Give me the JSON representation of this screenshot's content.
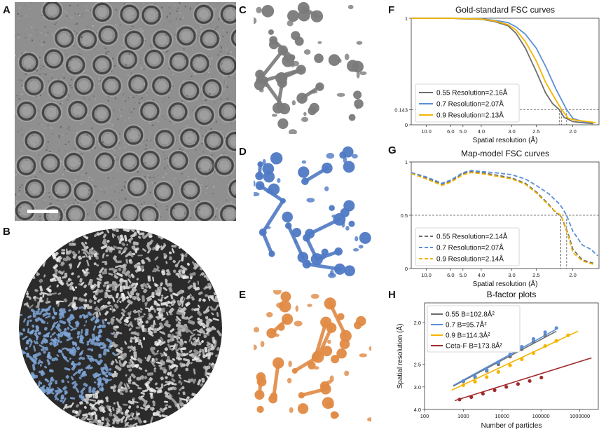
{
  "panel_labels": {
    "A": "A",
    "B": "B",
    "C": "C",
    "D": "D",
    "E": "E",
    "F": "F",
    "G": "G",
    "H": "H"
  },
  "colors": {
    "gray": "#6e6e6e",
    "blue": "#5b8fd6",
    "yellow": "#f5b400",
    "red": "#a02b2b",
    "density_c": "#7a7a7a",
    "density_d": "#4f79c4",
    "density_e": "#e08a45",
    "micrograph_bg": "#8f8f8f",
    "map_blue_patch": "#7fa6d8"
  },
  "chart_data": [
    {
      "id": "F",
      "type": "line",
      "title": "Gold-standard FSC curves",
      "xlabel": "Spatial resolution (Å)",
      "ylabel": "",
      "x_scale": "reciprocal",
      "xlim": [
        17,
        1.75
      ],
      "ylim": [
        0,
        1
      ],
      "xticks": [
        {
          "v": 10.0,
          "label": "10.0"
        },
        {
          "v": 6.0,
          "label": "6.0"
        },
        {
          "v": 5.0,
          "label": "5.0"
        },
        {
          "v": 4.0,
          "label": "4.0"
        },
        {
          "v": 3.0,
          "label": "3.0"
        },
        {
          "v": 2.5,
          "label": "2.5"
        },
        {
          "v": 2.0,
          "label": "2.0"
        }
      ],
      "yticks": [
        {
          "v": 0,
          "label": "0"
        },
        {
          "v": 0.143,
          "label": "0.143"
        },
        {
          "v": 1,
          "label": "1"
        }
      ],
      "threshold": 0.143,
      "legend_position": "lower-left",
      "series": [
        {
          "name": "0.55",
          "legend": "0.55  Resolution=2.16Å",
          "color_key": "gray",
          "dash": false,
          "cutoff": 2.16,
          "x": [
            17,
            8,
            6,
            5,
            4,
            3.5,
            3.1,
            2.9,
            2.7,
            2.5,
            2.35,
            2.25,
            2.16,
            2.1,
            2.0,
            1.9,
            1.8
          ],
          "y": [
            1,
            1,
            1,
            0.995,
            0.99,
            0.97,
            0.93,
            0.86,
            0.72,
            0.5,
            0.3,
            0.2,
            0.143,
            0.07,
            0.03,
            0.02,
            0.01
          ]
        },
        {
          "name": "0.7",
          "legend": "0.7    Resolution=2.07Å",
          "color_key": "blue",
          "dash": false,
          "cutoff": 2.07,
          "x": [
            17,
            8,
            6,
            5,
            4,
            3.5,
            3.1,
            2.9,
            2.7,
            2.5,
            2.35,
            2.2,
            2.07,
            2.0,
            1.9,
            1.8
          ],
          "y": [
            1,
            1,
            1,
            0.998,
            0.995,
            0.98,
            0.96,
            0.92,
            0.85,
            0.72,
            0.55,
            0.33,
            0.143,
            0.06,
            0.03,
            0.02
          ]
        },
        {
          "name": "0.9",
          "legend": "0.9    Resolution=2.13Å",
          "color_key": "yellow",
          "dash": false,
          "cutoff": 2.13,
          "x": [
            17,
            8,
            6,
            5,
            4,
            3.5,
            3.1,
            2.9,
            2.7,
            2.5,
            2.35,
            2.22,
            2.13,
            2.05,
            1.95,
            1.85,
            1.78
          ],
          "y": [
            1,
            1,
            1,
            0.997,
            0.993,
            0.975,
            0.94,
            0.89,
            0.78,
            0.6,
            0.4,
            0.25,
            0.143,
            0.06,
            0.04,
            0.03,
            0.02
          ]
        }
      ]
    },
    {
      "id": "G",
      "type": "line",
      "title": "Map-model FSC curves",
      "xlabel": "Spatial resolution (Å)",
      "ylabel": "",
      "x_scale": "reciprocal",
      "xlim": [
        17,
        1.75
      ],
      "ylim": [
        0,
        1
      ],
      "xticks": [
        {
          "v": 10.0,
          "label": "10.0"
        },
        {
          "v": 6.0,
          "label": "6.0"
        },
        {
          "v": 5.0,
          "label": "5.0"
        },
        {
          "v": 4.0,
          "label": "4.0"
        },
        {
          "v": 3.0,
          "label": "3.0"
        },
        {
          "v": 2.5,
          "label": "2.5"
        },
        {
          "v": 2.0,
          "label": "2.0"
        }
      ],
      "yticks": [
        {
          "v": 0,
          "label": "0"
        },
        {
          "v": 0.5,
          "label": "0.5"
        },
        {
          "v": 1,
          "label": "1"
        }
      ],
      "threshold": 0.5,
      "legend_position": "lower-left",
      "series": [
        {
          "name": "0.55",
          "legend": "0.55 Resolution=2.14Å",
          "color_key": "gray",
          "dash": true,
          "cutoff": 2.14,
          "x": [
            17,
            10,
            7,
            6,
            5,
            4.5,
            4,
            3.5,
            3,
            2.7,
            2.5,
            2.3,
            2.2,
            2.14,
            2.05,
            2.0,
            1.9,
            1.8
          ],
          "y": [
            0.9,
            0.85,
            0.79,
            0.82,
            0.89,
            0.91,
            0.9,
            0.88,
            0.85,
            0.8,
            0.72,
            0.6,
            0.52,
            0.5,
            0.32,
            0.18,
            0.08,
            0.05
          ]
        },
        {
          "name": "0.7",
          "legend": "0.7   Resolution=2.07Å",
          "color_key": "blue",
          "dash": true,
          "cutoff": 2.07,
          "x": [
            17,
            10,
            7,
            6,
            5,
            4.5,
            4,
            3.5,
            3,
            2.7,
            2.5,
            2.3,
            2.15,
            2.07,
            2.0,
            1.9,
            1.82,
            1.76
          ],
          "y": [
            0.9,
            0.86,
            0.8,
            0.83,
            0.9,
            0.92,
            0.91,
            0.9,
            0.88,
            0.84,
            0.78,
            0.7,
            0.6,
            0.5,
            0.35,
            0.22,
            0.18,
            0.12
          ]
        },
        {
          "name": "0.9",
          "legend": "0.9   Resolution=2.14Å",
          "color_key": "yellow",
          "dash": true,
          "cutoff": 2.14,
          "x": [
            17,
            10,
            7,
            6,
            5,
            4.5,
            4,
            3.5,
            3,
            2.7,
            2.5,
            2.3,
            2.2,
            2.14,
            2.05,
            2.0,
            1.9,
            1.8
          ],
          "y": [
            0.89,
            0.84,
            0.78,
            0.81,
            0.88,
            0.9,
            0.89,
            0.87,
            0.84,
            0.79,
            0.71,
            0.59,
            0.53,
            0.5,
            0.3,
            0.15,
            0.07,
            0.04
          ]
        }
      ]
    },
    {
      "id": "H",
      "type": "scatter",
      "title": "B-factor plots",
      "xlabel": "Number of particles",
      "ylabel": "Spatial resolution (Å)",
      "x_scale": "log",
      "y_scale": "inverse-square",
      "xlim": [
        100,
        3000000
      ],
      "ylim": [
        4.0,
        1.85
      ],
      "xticks": [
        {
          "v": 100,
          "label": "100"
        },
        {
          "v": 1000,
          "label": "1000"
        },
        {
          "v": 10000,
          "label": "10000"
        },
        {
          "v": 100000,
          "label": "100000"
        },
        {
          "v": 1000000,
          "label": "1000000"
        }
      ],
      "yticks": [
        {
          "v": 2.0,
          "label": "2.0"
        },
        {
          "v": 2.5,
          "label": "2.5"
        },
        {
          "v": 3.0,
          "label": "3.0"
        },
        {
          "v": 4.0,
          "label": "4.0"
        }
      ],
      "legend_position": "top-left",
      "series": [
        {
          "name": "0.55",
          "legend": "0.55 B=102.8Å²",
          "color_key": "gray",
          "x": [
            1000,
            2000,
            4000,
            8000,
            16000,
            32000,
            64000,
            128000
          ],
          "y": [
            2.85,
            2.75,
            2.62,
            2.5,
            2.38,
            2.28,
            2.19,
            2.12
          ],
          "fit_x": [
            550,
            250000
          ],
          "fit_y": [
            2.98,
            2.08
          ]
        },
        {
          "name": "0.7",
          "legend": "0.7    B=95.7Å²",
          "color_key": "blue",
          "x": [
            1000,
            2000,
            4000,
            8000,
            16000,
            32000,
            64000,
            128000,
            250000
          ],
          "y": [
            2.84,
            2.74,
            2.6,
            2.47,
            2.35,
            2.25,
            2.16,
            2.09,
            2.05
          ],
          "fit_x": [
            550,
            250000
          ],
          "fit_y": [
            2.96,
            2.06
          ]
        },
        {
          "name": "0.9",
          "legend": "0.9    B=114.3Å²",
          "color_key": "yellow",
          "x": [
            1000,
            2000,
            4000,
            8000,
            16000,
            32000,
            64000,
            128000,
            250000,
            500000
          ],
          "y": [
            2.95,
            2.86,
            2.75,
            2.64,
            2.52,
            2.42,
            2.33,
            2.24,
            2.18,
            2.12
          ],
          "fit_x": [
            500,
            900000
          ],
          "fit_y": [
            3.1,
            2.08
          ]
        },
        {
          "name": "Ceta-F",
          "legend": "Ceta-F B=173.8Å²",
          "color_key": "red",
          "x": [
            800,
            1600,
            3200,
            6400,
            12800,
            25600,
            51200,
            102400
          ],
          "y": [
            3.45,
            3.35,
            3.22,
            3.1,
            3.0,
            2.92,
            2.84,
            2.76
          ],
          "fit_x": [
            600,
            2000000
          ],
          "fit_y": [
            3.5,
            2.4
          ]
        }
      ]
    }
  ]
}
